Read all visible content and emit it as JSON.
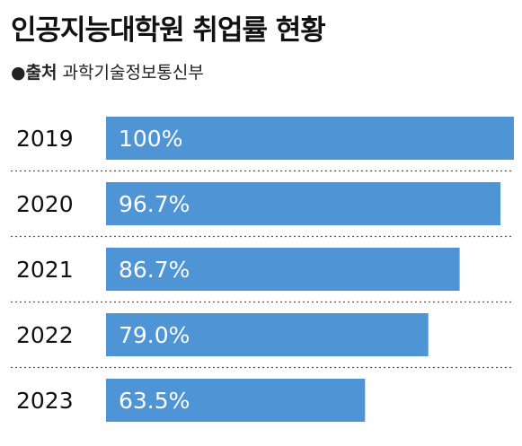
{
  "title": "인공지능대학원 취업률 현황",
  "source": {
    "label": "●출처",
    "value": "과학기술정보통신부"
  },
  "colors": {
    "bar": "#4f94d4",
    "value_text": "#ffffff",
    "year_text": "#111111",
    "divider": "#555555"
  },
  "chart_data": {
    "type": "bar",
    "orientation": "horizontal",
    "title": "인공지능대학원 취업률 현황",
    "categories": [
      "2019",
      "2020",
      "2021",
      "2022",
      "2023"
    ],
    "values": [
      100,
      96.7,
      86.7,
      79.0,
      63.5
    ],
    "value_labels": [
      "100%",
      "96.7%",
      "86.7%",
      "79.0%",
      "63.5%"
    ],
    "unit": "%",
    "xlim": [
      0,
      100
    ],
    "grid": false,
    "legend": "none"
  }
}
